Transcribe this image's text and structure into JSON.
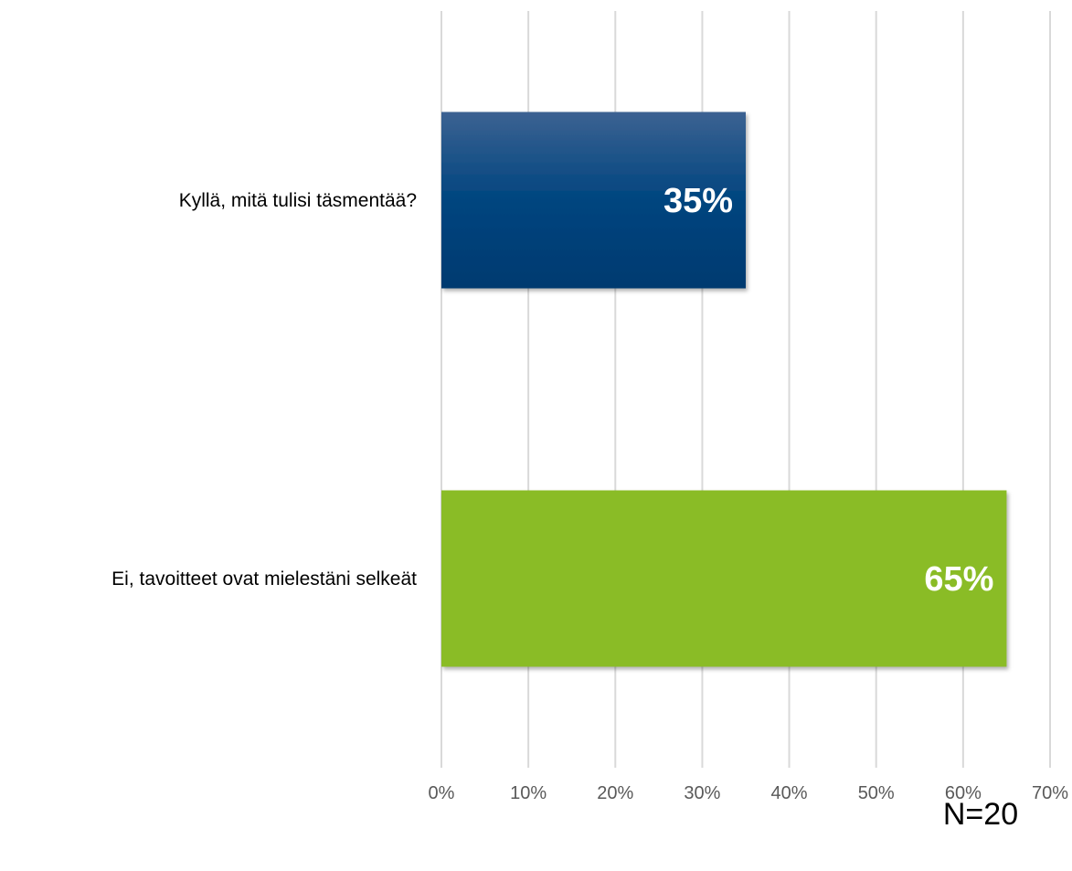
{
  "chart_data": {
    "type": "bar",
    "orientation": "horizontal",
    "categories": [
      "Kyllä, mitä tulisi täsmentää?",
      "Ei, tavoitteet ovat mielestäni selkeät"
    ],
    "values": [
      35,
      65
    ],
    "value_labels": [
      "35%",
      "65%"
    ],
    "colors": [
      "#00457f",
      "#8abc27"
    ],
    "xlim": [
      0,
      70
    ],
    "xticks": [
      0,
      10,
      20,
      30,
      40,
      50,
      60,
      70
    ],
    "xtick_labels": [
      "0%",
      "10%",
      "20%",
      "30%",
      "40%",
      "50%",
      "60%",
      "70%"
    ],
    "grid": "vertical",
    "legend": "none",
    "title": "",
    "xlabel": "",
    "ylabel": ""
  },
  "note": "N=20"
}
